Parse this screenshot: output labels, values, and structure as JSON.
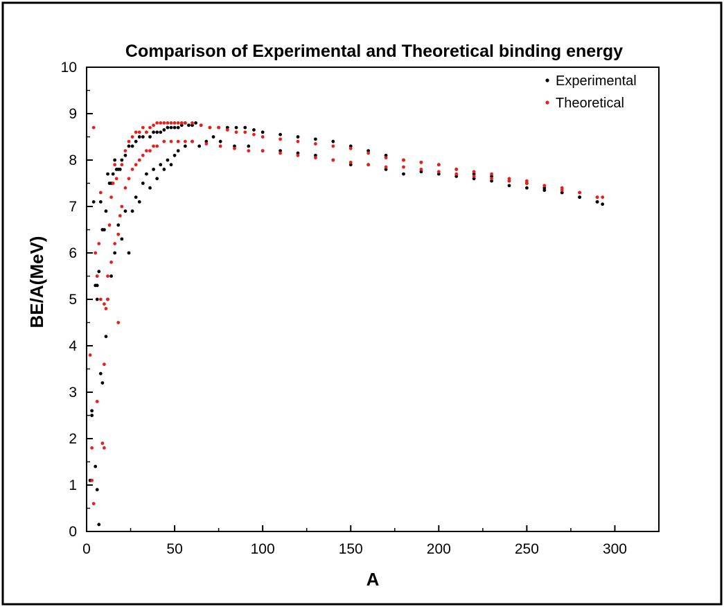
{
  "chart_data": {
    "type": "scatter",
    "title": "Comparison of Experimental and Theoretical binding energy",
    "xlabel": "A",
    "ylabel": "BE/A(MeV)",
    "xlim": [
      0,
      325
    ],
    "ylim": [
      0,
      10
    ],
    "x_ticks": [
      0,
      50,
      100,
      150,
      200,
      250,
      300
    ],
    "y_ticks": [
      0,
      1,
      2,
      3,
      4,
      5,
      6,
      7,
      8,
      9,
      10
    ],
    "grid": false,
    "legend_position": "top-right",
    "series": [
      {
        "name": "Experimental",
        "color": "#000000",
        "points": [
          [
            2,
            1.1
          ],
          [
            3,
            2.6
          ],
          [
            3,
            2.5
          ],
          [
            4,
            7.1
          ],
          [
            5,
            5.3
          ],
          [
            6,
            5.0
          ],
          [
            6,
            5.3
          ],
          [
            7,
            5.6
          ],
          [
            8,
            7.1
          ],
          [
            9,
            6.5
          ],
          [
            10,
            6.5
          ],
          [
            11,
            6.9
          ],
          [
            12,
            7.7
          ],
          [
            13,
            7.5
          ],
          [
            14,
            7.5
          ],
          [
            15,
            7.7
          ],
          [
            16,
            8.0
          ],
          [
            17,
            7.8
          ],
          [
            18,
            7.8
          ],
          [
            19,
            7.8
          ],
          [
            20,
            8.0
          ],
          [
            22,
            8.1
          ],
          [
            24,
            8.3
          ],
          [
            26,
            8.3
          ],
          [
            28,
            8.4
          ],
          [
            30,
            8.5
          ],
          [
            32,
            8.5
          ],
          [
            34,
            8.6
          ],
          [
            36,
            8.5
          ],
          [
            38,
            8.6
          ],
          [
            40,
            8.6
          ],
          [
            42,
            8.6
          ],
          [
            44,
            8.65
          ],
          [
            46,
            8.7
          ],
          [
            48,
            8.7
          ],
          [
            50,
            8.7
          ],
          [
            52,
            8.7
          ],
          [
            54,
            8.75
          ],
          [
            56,
            8.8
          ],
          [
            58,
            8.75
          ],
          [
            60,
            8.75
          ],
          [
            62,
            8.8
          ],
          [
            65,
            8.75
          ],
          [
            70,
            8.7
          ],
          [
            75,
            8.7
          ],
          [
            80,
            8.7
          ],
          [
            85,
            8.7
          ],
          [
            90,
            8.7
          ],
          [
            95,
            8.65
          ],
          [
            100,
            8.6
          ],
          [
            110,
            8.55
          ],
          [
            120,
            8.5
          ],
          [
            130,
            8.45
          ],
          [
            140,
            8.4
          ],
          [
            150,
            8.3
          ],
          [
            160,
            8.2
          ],
          [
            170,
            8.1
          ],
          [
            180,
            8.0
          ],
          [
            190,
            7.95
          ],
          [
            200,
            7.9
          ],
          [
            210,
            7.8
          ],
          [
            220,
            7.7
          ],
          [
            230,
            7.65
          ],
          [
            240,
            7.55
          ],
          [
            250,
            7.5
          ],
          [
            260,
            7.4
          ],
          [
            270,
            7.3
          ],
          [
            280,
            7.2
          ],
          [
            290,
            7.1
          ],
          [
            293,
            7.05
          ],
          [
            5,
            1.4
          ],
          [
            6,
            0.9
          ],
          [
            7,
            0.15
          ],
          [
            8,
            3.4
          ],
          [
            9,
            3.2
          ],
          [
            11,
            4.2
          ],
          [
            12,
            5.0
          ],
          [
            14,
            5.5
          ],
          [
            16,
            6.0
          ],
          [
            18,
            6.6
          ],
          [
            20,
            6.3
          ],
          [
            22,
            6.9
          ],
          [
            24,
            6.0
          ],
          [
            26,
            6.9
          ],
          [
            28,
            7.2
          ],
          [
            30,
            7.1
          ],
          [
            32,
            7.5
          ],
          [
            34,
            7.7
          ],
          [
            36,
            7.4
          ],
          [
            38,
            7.8
          ],
          [
            40,
            7.6
          ],
          [
            42,
            7.9
          ],
          [
            44,
            7.8
          ],
          [
            46,
            8.0
          ],
          [
            48,
            7.9
          ],
          [
            50,
            8.1
          ],
          [
            52,
            8.2
          ],
          [
            56,
            8.3
          ],
          [
            60,
            8.4
          ],
          [
            64,
            8.3
          ],
          [
            68,
            8.4
          ],
          [
            72,
            8.5
          ],
          [
            76,
            8.4
          ],
          [
            84,
            8.3
          ],
          [
            92,
            8.3
          ],
          [
            100,
            8.2
          ],
          [
            110,
            8.2
          ],
          [
            120,
            8.15
          ],
          [
            130,
            8.1
          ],
          [
            140,
            8.0
          ],
          [
            150,
            7.9
          ],
          [
            160,
            7.9
          ],
          [
            170,
            7.8
          ],
          [
            180,
            7.7
          ],
          [
            190,
            7.75
          ],
          [
            200,
            7.7
          ],
          [
            210,
            7.65
          ],
          [
            220,
            7.6
          ],
          [
            230,
            7.55
          ],
          [
            240,
            7.45
          ],
          [
            250,
            7.4
          ],
          [
            260,
            7.35
          ],
          [
            270,
            7.3
          ],
          [
            280,
            7.2
          ],
          [
            290,
            7.1
          ]
        ]
      },
      {
        "name": "Theoretical",
        "color": "#e8201a",
        "points": [
          [
            2,
            3.8
          ],
          [
            3,
            1.1
          ],
          [
            3,
            1.8
          ],
          [
            4,
            8.7
          ],
          [
            5,
            6.0
          ],
          [
            6,
            5.5
          ],
          [
            7,
            6.2
          ],
          [
            8,
            7.3
          ],
          [
            9,
            1.9
          ],
          [
            10,
            1.8
          ],
          [
            10,
            3.6
          ],
          [
            11,
            4.8
          ],
          [
            12,
            5.5
          ],
          [
            13,
            6.6
          ],
          [
            14,
            7.2
          ],
          [
            15,
            7.5
          ],
          [
            16,
            7.9
          ],
          [
            17,
            7.6
          ],
          [
            18,
            4.5
          ],
          [
            19,
            6.8
          ],
          [
            20,
            7.9
          ],
          [
            22,
            8.2
          ],
          [
            24,
            8.4
          ],
          [
            26,
            8.5
          ],
          [
            28,
            8.6
          ],
          [
            30,
            8.6
          ],
          [
            32,
            8.7
          ],
          [
            34,
            8.6
          ],
          [
            36,
            8.7
          ],
          [
            38,
            8.75
          ],
          [
            40,
            8.8
          ],
          [
            42,
            8.8
          ],
          [
            44,
            8.8
          ],
          [
            46,
            8.8
          ],
          [
            48,
            8.8
          ],
          [
            50,
            8.8
          ],
          [
            52,
            8.8
          ],
          [
            54,
            8.8
          ],
          [
            56,
            8.8
          ],
          [
            60,
            8.8
          ],
          [
            65,
            8.75
          ],
          [
            70,
            8.7
          ],
          [
            75,
            8.7
          ],
          [
            80,
            8.65
          ],
          [
            85,
            8.6
          ],
          [
            90,
            8.6
          ],
          [
            95,
            8.55
          ],
          [
            100,
            8.5
          ],
          [
            110,
            8.45
          ],
          [
            120,
            8.4
          ],
          [
            130,
            8.35
          ],
          [
            140,
            8.3
          ],
          [
            150,
            8.25
          ],
          [
            160,
            8.15
          ],
          [
            170,
            8.05
          ],
          [
            180,
            8.0
          ],
          [
            190,
            7.95
          ],
          [
            200,
            7.9
          ],
          [
            210,
            7.8
          ],
          [
            220,
            7.75
          ],
          [
            230,
            7.7
          ],
          [
            240,
            7.6
          ],
          [
            250,
            7.55
          ],
          [
            260,
            7.45
          ],
          [
            270,
            7.4
          ],
          [
            280,
            7.3
          ],
          [
            290,
            7.2
          ],
          [
            293,
            7.2
          ],
          [
            4,
            0.6
          ],
          [
            6,
            2.8
          ],
          [
            8,
            5.0
          ],
          [
            10,
            4.9
          ],
          [
            12,
            5.0
          ],
          [
            14,
            5.8
          ],
          [
            16,
            6.2
          ],
          [
            18,
            6.4
          ],
          [
            20,
            7.0
          ],
          [
            22,
            7.4
          ],
          [
            24,
            7.6
          ],
          [
            26,
            7.8
          ],
          [
            28,
            7.9
          ],
          [
            30,
            8.0
          ],
          [
            32,
            8.1
          ],
          [
            34,
            8.2
          ],
          [
            36,
            8.2
          ],
          [
            38,
            8.3
          ],
          [
            40,
            8.3
          ],
          [
            44,
            8.4
          ],
          [
            48,
            8.4
          ],
          [
            52,
            8.4
          ],
          [
            56,
            8.4
          ],
          [
            60,
            8.4
          ],
          [
            68,
            8.35
          ],
          [
            76,
            8.3
          ],
          [
            84,
            8.25
          ],
          [
            92,
            8.2
          ],
          [
            100,
            8.2
          ],
          [
            110,
            8.15
          ],
          [
            120,
            8.1
          ],
          [
            130,
            8.05
          ],
          [
            140,
            8.0
          ],
          [
            150,
            7.95
          ],
          [
            160,
            7.9
          ],
          [
            170,
            7.85
          ],
          [
            180,
            7.85
          ],
          [
            190,
            7.8
          ],
          [
            200,
            7.75
          ],
          [
            210,
            7.7
          ],
          [
            220,
            7.65
          ],
          [
            230,
            7.6
          ],
          [
            240,
            7.55
          ],
          [
            250,
            7.5
          ],
          [
            260,
            7.45
          ],
          [
            270,
            7.35
          ],
          [
            280,
            7.3
          ],
          [
            290,
            7.2
          ]
        ]
      }
    ]
  }
}
